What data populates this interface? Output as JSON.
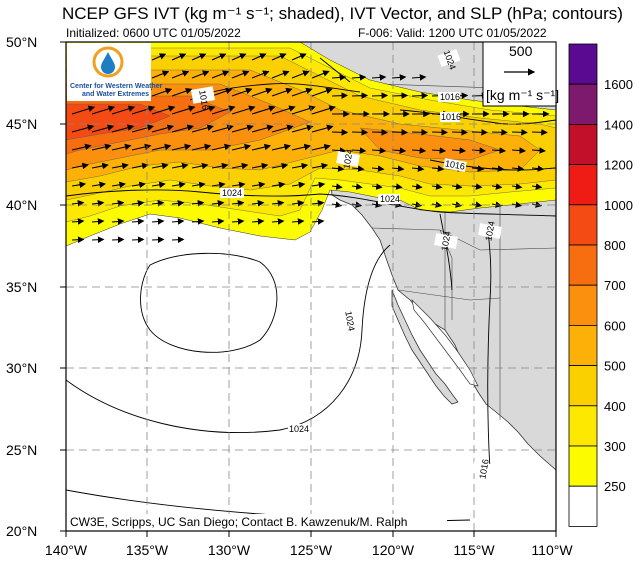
{
  "title": "NCEP GFS IVT (kg m⁻¹ s⁻¹; shaded), IVT Vector, and SLP (hPa; contours)",
  "initialized": "Initialized: 0600 UTC 01/05/2022",
  "valid": "F-006: Valid: 1200 UTC 01/05/2022",
  "credit": "CW3E, Scripps, UC San Diego; Contact B. Kawzenuk/M. Ralph",
  "logo": {
    "line1": "Center for Western Weather",
    "line2": "and Water Extremes",
    "icon": "water-drop-logo-icon"
  },
  "reference_vector": {
    "value": "500",
    "units": "[kg m⁻¹ s⁻¹]"
  },
  "lat_labels": [
    "50°N",
    "45°N",
    "40°N",
    "35°N",
    "30°N",
    "25°N",
    "20°N"
  ],
  "lon_labels": [
    "140°W",
    "135°W",
    "130°W",
    "125°W",
    "120°W",
    "115°W",
    "110°W"
  ],
  "colorbar": {
    "levels": [
      "1600",
      "1400",
      "1200",
      "1000",
      "800",
      "700",
      "600",
      "500",
      "400",
      "300",
      "250"
    ],
    "colors": [
      "#5a0a91",
      "#7e1a6e",
      "#c2102a",
      "#ee1c14",
      "#f44a14",
      "#f76e10",
      "#fb8f0e",
      "#fcb008",
      "#fbd000",
      "#fce800",
      "#fdfb00",
      "#ffffff"
    ]
  },
  "slp_labels": {
    "c1": "1016",
    "c2": "1016",
    "c3": "1024",
    "c4": "1024",
    "c5": "1024",
    "c6": "1024",
    "c7": "1016",
    "c8": "1024",
    "c9": "1016",
    "c10": "1024",
    "c11": "1024",
    "c12": "1016"
  }
}
